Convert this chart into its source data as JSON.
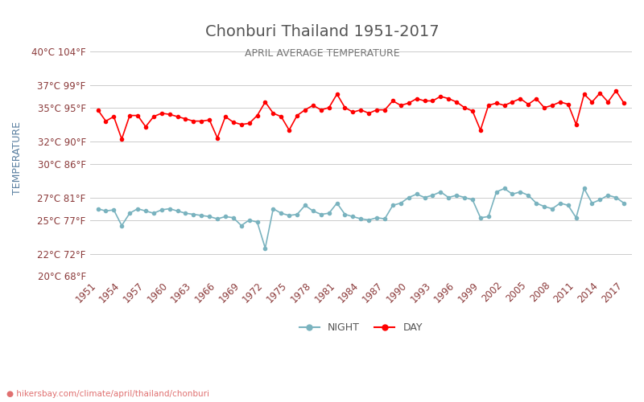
{
  "title": "Chonburi Thailand 1951-2017",
  "subtitle": "APRIL AVERAGE TEMPERATURE",
  "ylabel": "TEMPERATURE",
  "xlabel_url": "● hikersbay.com/climate/april/thailand/chonburi",
  "years": [
    1951,
    1952,
    1953,
    1954,
    1955,
    1956,
    1957,
    1958,
    1959,
    1960,
    1961,
    1962,
    1963,
    1964,
    1965,
    1966,
    1967,
    1968,
    1969,
    1970,
    1971,
    1972,
    1973,
    1974,
    1975,
    1976,
    1977,
    1978,
    1979,
    1980,
    1981,
    1982,
    1983,
    1984,
    1985,
    1986,
    1987,
    1988,
    1989,
    1990,
    1991,
    1992,
    1993,
    1994,
    1995,
    1996,
    1997,
    1998,
    1999,
    2000,
    2001,
    2002,
    2003,
    2004,
    2005,
    2006,
    2007,
    2008,
    2009,
    2010,
    2011,
    2012,
    2013,
    2014,
    2015,
    2016,
    2017
  ],
  "day_temps": [
    34.8,
    33.8,
    34.2,
    32.2,
    34.3,
    34.3,
    33.3,
    34.2,
    34.5,
    34.4,
    34.2,
    34.0,
    33.8,
    33.8,
    33.9,
    32.3,
    34.2,
    33.7,
    33.5,
    33.6,
    34.3,
    35.5,
    34.5,
    34.2,
    33.0,
    34.3,
    34.8,
    35.2,
    34.8,
    35.0,
    36.2,
    35.0,
    34.6,
    34.8,
    34.5,
    34.8,
    34.8,
    35.6,
    35.2,
    35.4,
    35.8,
    35.6,
    35.6,
    36.0,
    35.8,
    35.5,
    35.0,
    34.7,
    33.0,
    35.2,
    35.4,
    35.2,
    35.5,
    35.8,
    35.3,
    35.8,
    35.0,
    35.2,
    35.5,
    35.3,
    33.5,
    36.2,
    35.5,
    36.3,
    35.5,
    36.5,
    35.4
  ],
  "night_temps": [
    26.0,
    25.8,
    25.9,
    24.5,
    25.6,
    26.0,
    25.8,
    25.6,
    25.9,
    26.0,
    25.8,
    25.6,
    25.5,
    25.4,
    25.3,
    25.1,
    25.3,
    25.2,
    24.5,
    25.0,
    24.8,
    22.5,
    26.0,
    25.6,
    25.4,
    25.5,
    26.3,
    25.8,
    25.5,
    25.6,
    26.5,
    25.5,
    25.3,
    25.1,
    25.0,
    25.2,
    25.1,
    26.3,
    26.5,
    27.0,
    27.3,
    27.0,
    27.2,
    27.5,
    27.0,
    27.2,
    27.0,
    26.8,
    25.2,
    25.3,
    27.5,
    27.8,
    27.3,
    27.5,
    27.2,
    26.5,
    26.2,
    26.0,
    26.5,
    26.3,
    25.2,
    27.8,
    26.5,
    26.8,
    27.2,
    27.0,
    26.5
  ],
  "day_color": "#ff0000",
  "night_color": "#7ab3bf",
  "title_color": "#555555",
  "subtitle_color": "#777777",
  "label_color": "#8b3a3a",
  "ylabel_color": "#5a7fa0",
  "background_color": "#ffffff",
  "grid_color": "#cccccc",
  "yticks_c": [
    20,
    22,
    25,
    27,
    30,
    32,
    35,
    37,
    40
  ],
  "yticks_f": [
    68,
    72,
    77,
    81,
    86,
    90,
    95,
    99,
    104
  ],
  "xtick_years": [
    1951,
    1954,
    1957,
    1960,
    1963,
    1966,
    1969,
    1972,
    1975,
    1978,
    1981,
    1984,
    1987,
    1990,
    1993,
    1996,
    1999,
    2002,
    2005,
    2008,
    2011,
    2014,
    2017
  ],
  "ymin": 20,
  "ymax": 41
}
